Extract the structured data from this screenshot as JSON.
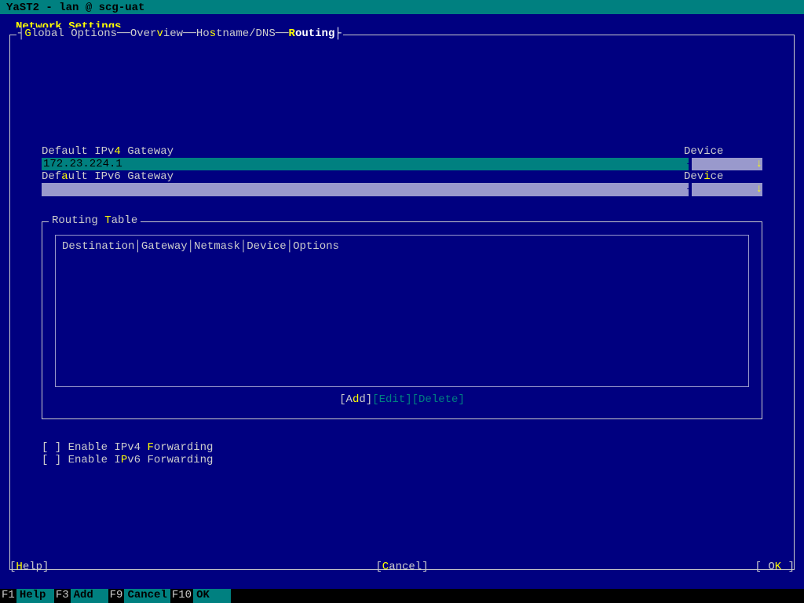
{
  "colors": {
    "background": "#000080",
    "titlebar_bg": "#008080",
    "titlebar_fg": "#000000",
    "text": "#cccccc",
    "highlight": "#ffff00",
    "active_text": "#ffffff",
    "input_active_bg": "#008080",
    "input_inactive_bg": "#9999cc",
    "disabled": "#008080",
    "statusbar_bg": "#000000"
  },
  "title_bar": "YaST2 - lan @ scg-uat",
  "page_title": "Network Settings",
  "tabs": {
    "global": {
      "pre": "",
      "hot": "G",
      "post": "lobal Options"
    },
    "overview": {
      "pre": "Over",
      "hot": "v",
      "post": "iew"
    },
    "hostname": {
      "pre": "Ho",
      "hot": "s",
      "post": "tname/DNS"
    },
    "routing": {
      "pre": "",
      "hot": "R",
      "post": "outing"
    }
  },
  "ipv4": {
    "label_pre": "Default IPv",
    "label_hot": "4",
    "label_post": " Gateway",
    "value": "172.23.224.1",
    "device_label": "Device",
    "device_value": "-"
  },
  "ipv6": {
    "label_pre": "Def",
    "label_hot": "a",
    "label_post": "ult IPv6 Gateway",
    "value": "",
    "device_label_pre": "Dev",
    "device_label_hot": "i",
    "device_label_post": "ce",
    "device_value": "-"
  },
  "routing_table": {
    "title_pre": "Routing ",
    "title_hot": "T",
    "title_post": "able",
    "columns": [
      "Destination",
      "Gateway",
      "Netmask",
      "Device",
      "Options"
    ],
    "rows": [],
    "buttons": {
      "add": {
        "pre": "A",
        "hot": "d",
        "post": "d"
      },
      "edit": {
        "pre": "",
        "hot": "E",
        "post": "dit"
      },
      "delete": {
        "pre": "De",
        "hot": "l",
        "post": "ete"
      }
    }
  },
  "checkboxes": {
    "ipv4_fwd": {
      "checked": false,
      "pre": "Enable IPv4 ",
      "hot": "F",
      "post": "orwarding"
    },
    "ipv6_fwd": {
      "checked": false,
      "pre": "Enable I",
      "hot": "P",
      "post": "v6 Forwarding"
    }
  },
  "bottom": {
    "help": {
      "pre": "",
      "hot": "H",
      "post": "elp"
    },
    "cancel": {
      "pre": "",
      "hot": "C",
      "post": "ancel"
    },
    "ok": {
      "pre": "O",
      "hot": "K",
      "post": ""
    }
  },
  "fkeys": [
    {
      "key": "F1",
      "label": "Help"
    },
    {
      "key": "F3",
      "label": "Add"
    },
    {
      "key": "F9",
      "label": "Cancel"
    },
    {
      "key": "F10",
      "label": "OK"
    }
  ]
}
